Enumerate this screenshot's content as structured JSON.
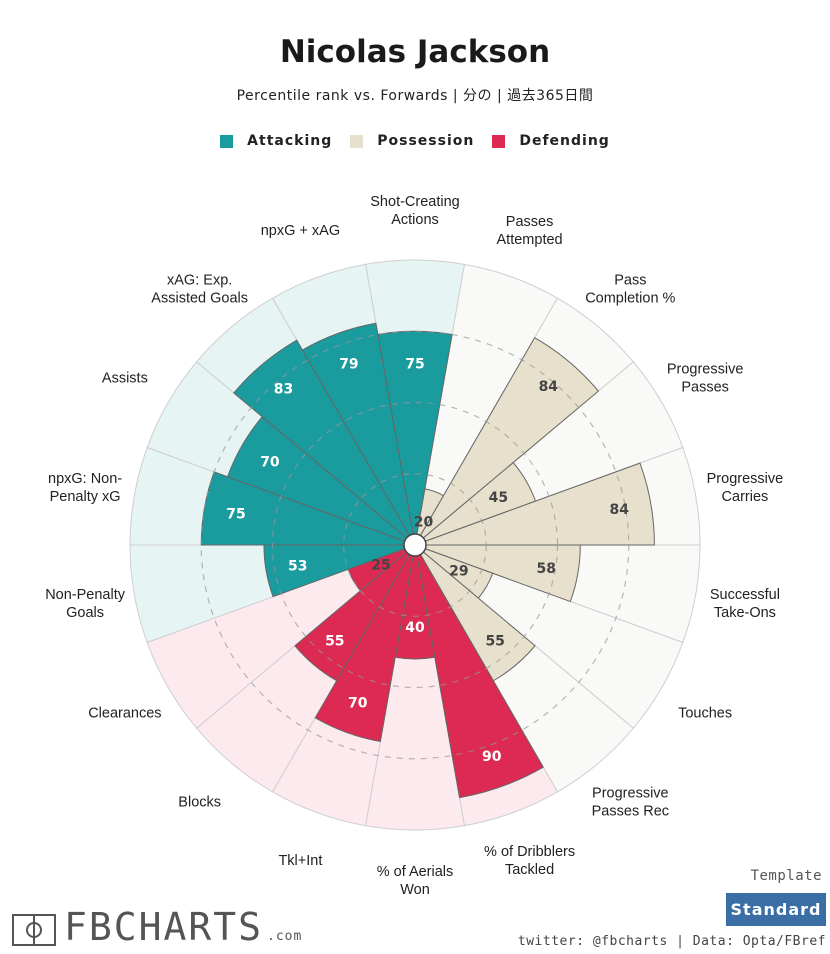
{
  "header": {
    "title": "Nicolas Jackson",
    "subtitle": "Percentile rank vs. Forwards | 分の | 過去365日間"
  },
  "legend": [
    {
      "label": "Attacking",
      "color": "#1a9b9e"
    },
    {
      "label": "Possession",
      "color": "#e6e0cc"
    },
    {
      "label": "Defending",
      "color": "#dc2a52"
    }
  ],
  "chart_data": {
    "type": "polar-bar",
    "title": "Nicolas Jackson",
    "range": [
      0,
      100
    ],
    "grid": true,
    "legend_position": "top-center",
    "categories": [
      {
        "label": "Shot-Creating\nActions",
        "value": 75,
        "group": "Attacking"
      },
      {
        "label": "Passes\nAttempted",
        "value": 20,
        "group": "Possession"
      },
      {
        "label": "Pass\nCompletion %",
        "value": 84,
        "group": "Possession"
      },
      {
        "label": "Progressive\nPasses",
        "value": 45,
        "group": "Possession"
      },
      {
        "label": "Progressive\nCarries",
        "value": 84,
        "group": "Possession"
      },
      {
        "label": "Successful\nTake-Ons",
        "value": 58,
        "group": "Possession"
      },
      {
        "label": "Touches",
        "value": 29,
        "group": "Possession"
      },
      {
        "label": "Progressive\nPasses Rec",
        "value": 55,
        "group": "Possession"
      },
      {
        "label": "% of Dribblers\nTackled",
        "value": 90,
        "group": "Defending"
      },
      {
        "label": "% of Aerials\nWon",
        "value": 40,
        "group": "Defending"
      },
      {
        "label": "Tkl+Int",
        "value": 70,
        "group": "Defending"
      },
      {
        "label": "Blocks",
        "value": 55,
        "group": "Defending"
      },
      {
        "label": "Clearances",
        "value": 25,
        "group": "Defending"
      },
      {
        "label": "Non-Penalty\nGoals",
        "value": 53,
        "group": "Attacking"
      },
      {
        "label": "npxG: Non-\nPenalty xG",
        "value": 75,
        "group": "Attacking"
      },
      {
        "label": "Assists",
        "value": 70,
        "group": "Attacking"
      },
      {
        "label": "xAG: Exp.\nAssisted Goals",
        "value": 83,
        "group": "Attacking"
      },
      {
        "label": "npxG + xAG",
        "value": 79,
        "group": "Attacking"
      }
    ],
    "group_colors": {
      "Attacking": {
        "fill": "#1a9b9e",
        "bg": "#e6f4f4"
      },
      "Possession": {
        "fill": "#e6e0cc",
        "bg": "#f9f9f7"
      },
      "Defending": {
        "fill": "#dc2a52",
        "bg": "#fceaee"
      }
    }
  },
  "footer": {
    "template_label": "Template",
    "template_button": "Standard",
    "credits": "twitter: @fbcharts | Data: Opta/FBref",
    "logo_text": "FBCHARTS",
    "logo_suffix": ".com"
  }
}
